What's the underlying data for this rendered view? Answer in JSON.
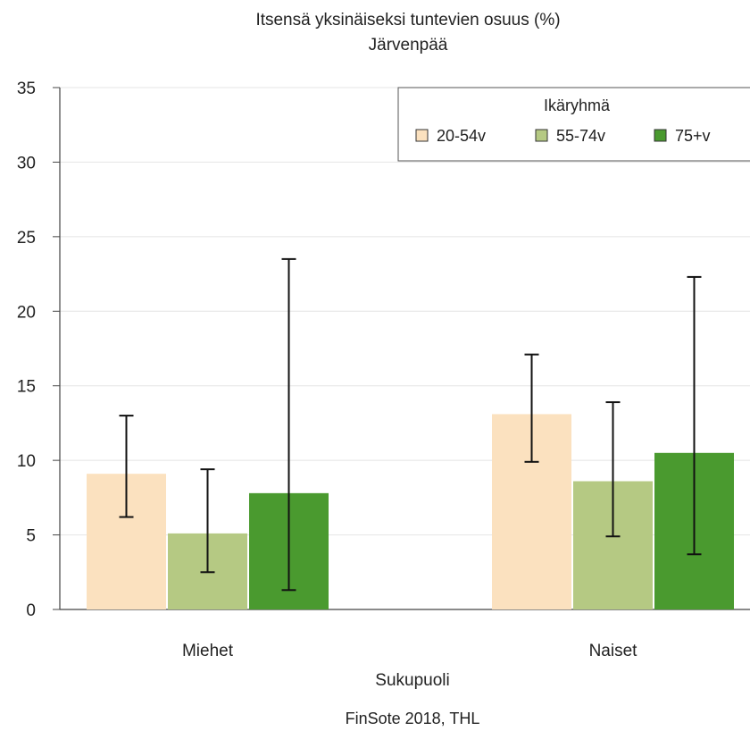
{
  "chart_data": {
    "type": "bar",
    "title": "Itsensä yksinäiseksi tuntevien osuus (%)",
    "subtitle": "Järvenpää",
    "xlabel": "Sukupuoli",
    "ylabel": "",
    "ylim": [
      0,
      35
    ],
    "yticks": [
      "0",
      "5",
      "10",
      "15",
      "20",
      "25",
      "30",
      "35"
    ],
    "categories": [
      "Miehet",
      "Naiset"
    ],
    "legend_title": "Ikäryhmä",
    "legend_position": "top-right",
    "grid": true,
    "series": [
      {
        "name": "20-54v",
        "color": "#fbe1bf",
        "values": [
          9.1,
          13.1
        ],
        "error_low": [
          6.2,
          9.9
        ],
        "error_high": [
          13.0,
          17.1
        ]
      },
      {
        "name": "55-74v",
        "color": "#b5c983",
        "values": [
          5.1,
          8.6
        ],
        "error_low": [
          2.5,
          4.9
        ],
        "error_high": [
          9.4,
          13.9
        ]
      },
      {
        "name": "75+v",
        "color": "#4a9a2f",
        "values": [
          7.8,
          10.5
        ],
        "error_low": [
          1.3,
          3.7
        ],
        "error_high": [
          23.5,
          22.3
        ]
      }
    ]
  },
  "caption": "FinSote 2018, THL"
}
